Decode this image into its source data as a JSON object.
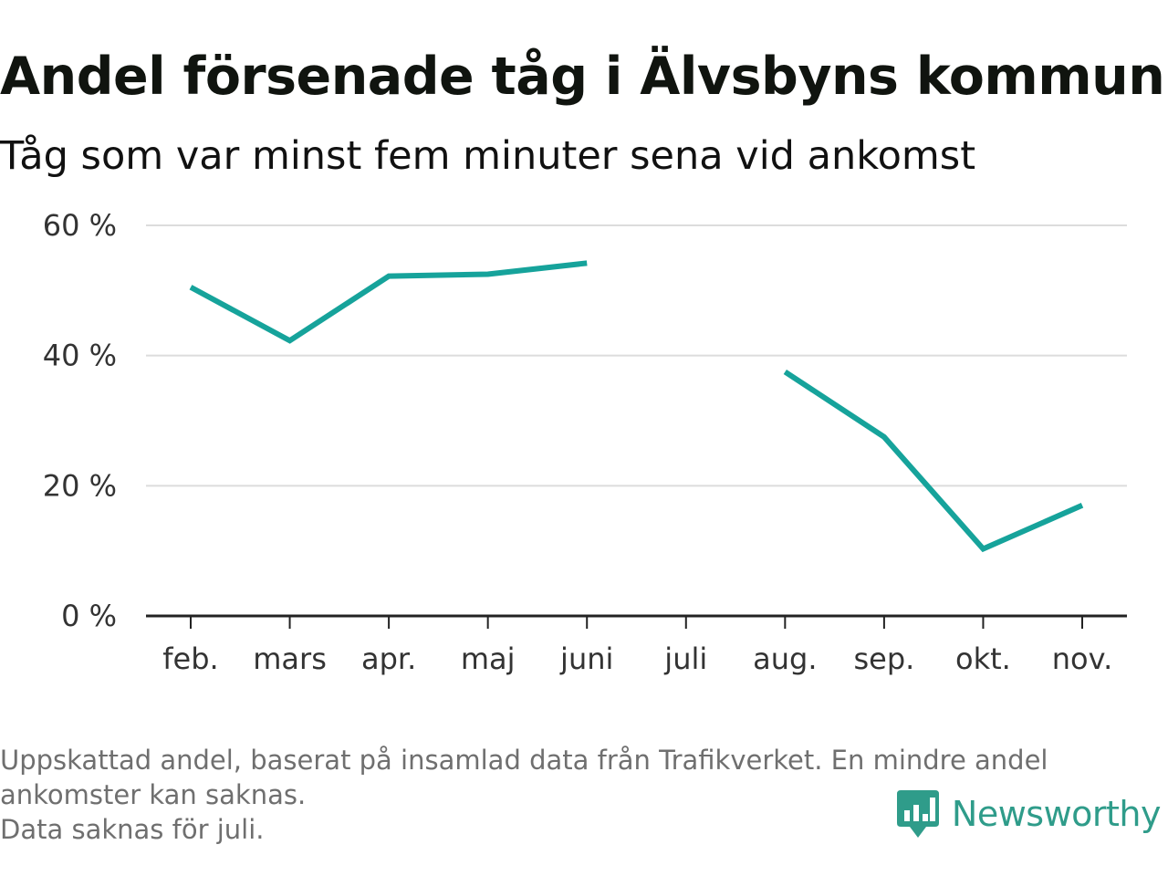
{
  "header": {
    "title": "Andel försenade tåg i Älvsbyns kommun",
    "subtitle": "Tåg som var minst fem minuter sena vid ankomst"
  },
  "chart_data": {
    "type": "line",
    "title": "Andel försenade tåg i Älvsbyns kommun",
    "subtitle": "Tåg som var minst fem minuter sena vid ankomst",
    "xlabel": "",
    "ylabel": "",
    "categories": [
      "feb.",
      "mars",
      "apr.",
      "maj",
      "juni",
      "juli",
      "aug.",
      "sep.",
      "okt.",
      "nov."
    ],
    "series": [
      {
        "values": [
          50.5,
          42.3,
          52.2,
          52.5,
          54.2,
          null,
          37.5,
          27.5,
          10.3,
          17.0
        ],
        "color": "#16a39b"
      }
    ],
    "ylim": [
      0,
      60
    ],
    "yticks": [
      0,
      20,
      40,
      60
    ],
    "ytick_labels": [
      "0 %",
      "20 %",
      "40 %",
      "60 %"
    ],
    "grid": true,
    "legend": "none"
  },
  "footer": {
    "note_line1": "Uppskattad andel, baserat på insamlad data från Trafikverket. En mindre andel",
    "note_line2": "ankomster kan saknas.",
    "note_line3": "Data saknas för juli.",
    "brand": "Newsworthy",
    "brand_icon": "newsworthy-logo-icon",
    "brand_color": "#2f9c8a"
  }
}
